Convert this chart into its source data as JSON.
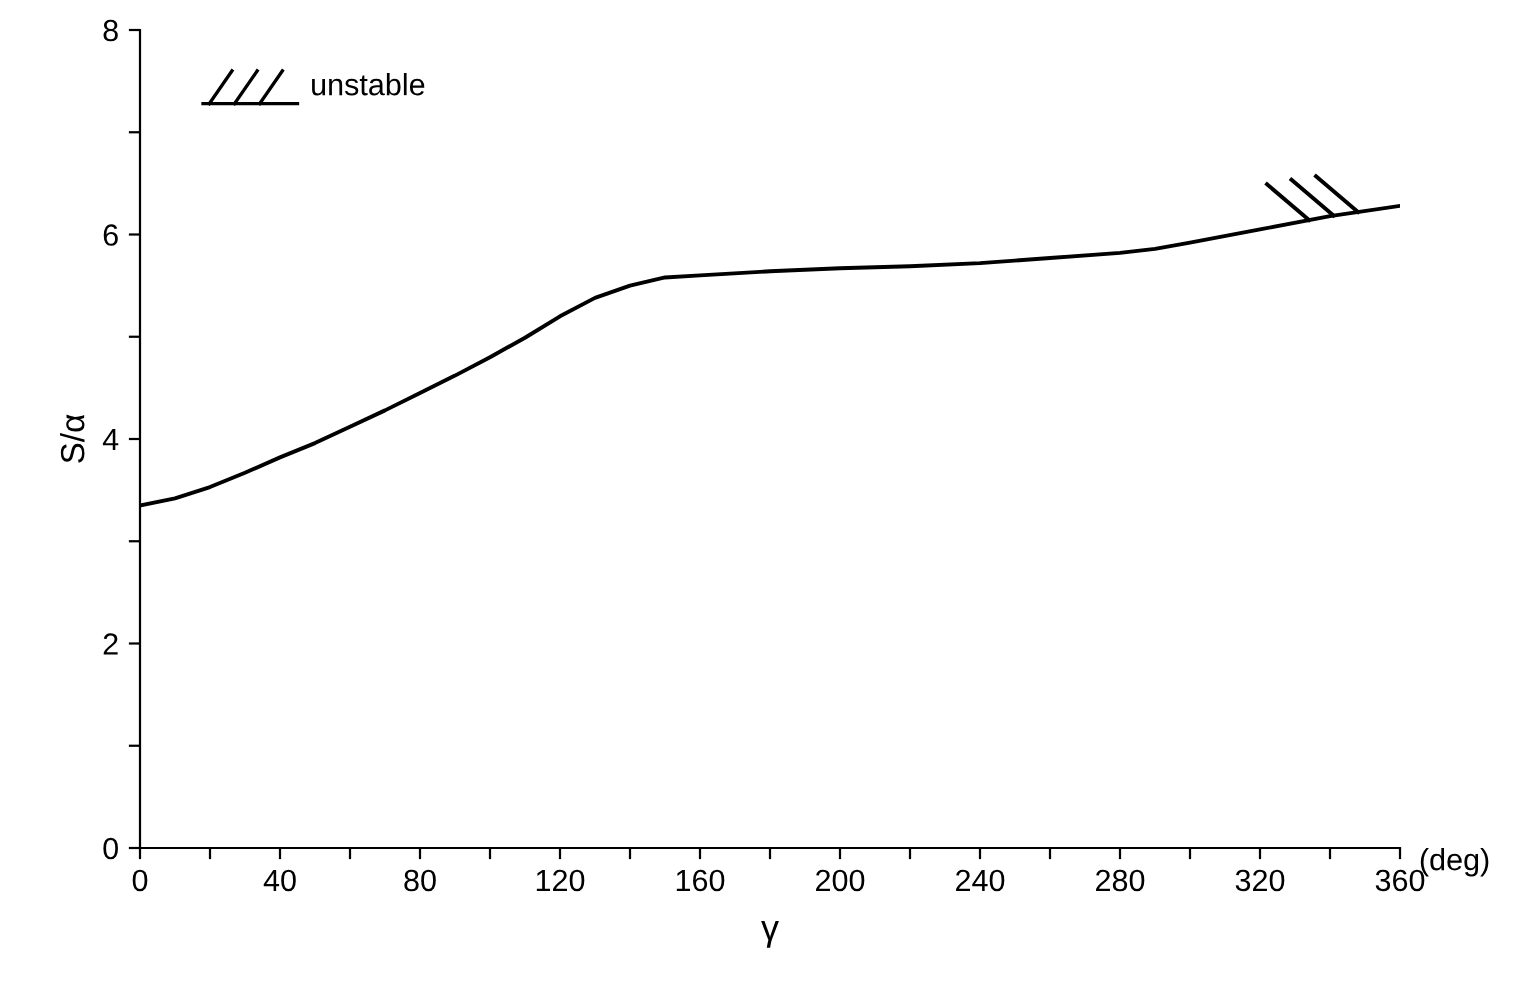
{
  "chart_data": {
    "type": "line",
    "xlabel": "γ",
    "ylabel": "S/α",
    "x": [
      0,
      10,
      20,
      30,
      40,
      50,
      60,
      70,
      80,
      90,
      100,
      110,
      120,
      130,
      140,
      150,
      160,
      180,
      200,
      220,
      240,
      260,
      280,
      290,
      300,
      320,
      340,
      360
    ],
    "series": [
      {
        "color": "#000000",
        "values": [
          3.35,
          3.42,
          3.53,
          3.67,
          3.82,
          3.96,
          4.12,
          4.28,
          4.45,
          4.62,
          4.8,
          4.99,
          5.2,
          5.38,
          5.5,
          5.58,
          5.6,
          5.64,
          5.67,
          5.69,
          5.72,
          5.77,
          5.82,
          5.86,
          5.92,
          6.05,
          6.18,
          6.28
        ]
      }
    ],
    "xlim": [
      0,
      360
    ],
    "ylim": [
      0,
      8
    ],
    "xticks": [
      0,
      {
        "value": 20,
        "label": null
      },
      40,
      {
        "value": 60,
        "label": null
      },
      80,
      {
        "value": 100,
        "label": null
      },
      120,
      {
        "value": 140,
        "label": null
      },
      160,
      {
        "value": 180,
        "label": null
      },
      200,
      {
        "value": 220,
        "label": null
      },
      240,
      {
        "value": 260,
        "label": null
      },
      280,
      {
        "value": 300,
        "label": null
      },
      320,
      {
        "value": 340,
        "label": null
      },
      360
    ],
    "yticks": [
      0,
      {
        "value": 1,
        "label": null
      },
      2,
      {
        "value": 3,
        "label": null
      },
      4,
      {
        "value": 5,
        "label": null
      },
      6,
      {
        "value": 7,
        "label": null
      },
      8
    ],
    "annotations": [
      "unstable",
      "(deg)"
    ],
    "grid": false,
    "marker": "none",
    "line_style": "solid"
  }
}
